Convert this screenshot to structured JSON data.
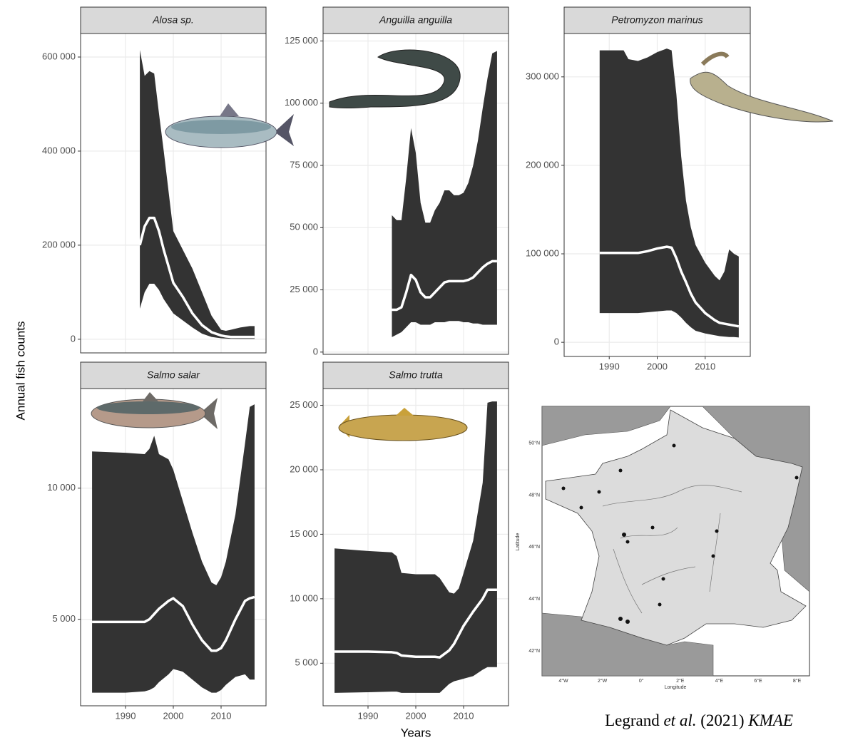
{
  "ylabel": "Annual fish counts",
  "xlabel": "Years",
  "caption": [
    "Legrand ",
    "et al.",
    " (2021) ",
    "KMAE"
  ],
  "map": {
    "lat_ticks": [
      "42°N",
      "44°N",
      "46°N",
      "48°N",
      "50°N"
    ],
    "lon_ticks": [
      "4°W",
      "2°W",
      "0°",
      "2°E",
      "4°E",
      "6°E",
      "8°E"
    ],
    "xlabel": "Longitude",
    "ylabel": "Latitude"
  },
  "chart_data": [
    {
      "type": "ribbon",
      "title": "Alosa sp.",
      "line_color": "#ffffff",
      "band_color": "#333333",
      "grid": true,
      "xtick_labels": false,
      "x": [
        1993,
        1994,
        1995,
        1996,
        1997,
        1998,
        2000,
        2002,
        2004,
        2006,
        2008,
        2010,
        2011,
        2012,
        2014,
        2016,
        2017
      ],
      "upper": [
        615000,
        560000,
        570000,
        565000,
        480000,
        400000,
        230000,
        190000,
        150000,
        100000,
        50000,
        20000,
        18000,
        20000,
        25000,
        28000,
        28000
      ],
      "values": [
        200000,
        240000,
        258000,
        258000,
        230000,
        190000,
        120000,
        90000,
        55000,
        30000,
        15000,
        8000,
        6000,
        5000,
        5000,
        5000,
        5000
      ],
      "lower": [
        65000,
        100000,
        118000,
        118000,
        105000,
        85000,
        55000,
        40000,
        25000,
        12000,
        5000,
        2000,
        1500,
        1200,
        1000,
        1000,
        1000
      ],
      "xlim": [
        1980.6,
        2019.4
      ],
      "xticks": [
        1990,
        2000,
        2010
      ],
      "ylim": [
        -29000,
        650000
      ],
      "yticks": [
        0,
        {
          "value": 200000,
          "label": "200 000"
        },
        {
          "value": 400000,
          "label": "400 000"
        },
        {
          "value": 600000,
          "label": "600 000"
        }
      ]
    },
    {
      "type": "ribbon",
      "title": "Anguilla anguilla",
      "line_color": "#ffffff",
      "band_color": "#333333",
      "grid": true,
      "xtick_labels": false,
      "x": [
        1995,
        1996,
        1997,
        1998,
        1999,
        2000,
        2001,
        2002,
        2003,
        2004,
        2005,
        2006,
        2007,
        2008,
        2009,
        2010,
        2011,
        2012,
        2013,
        2014,
        2015,
        2016,
        2017
      ],
      "upper": [
        55000,
        53000,
        53000,
        70000,
        90000,
        80000,
        60000,
        52000,
        52000,
        57000,
        60000,
        65000,
        65000,
        63000,
        63000,
        64000,
        68000,
        75000,
        85000,
        98000,
        110000,
        120000,
        121000
      ],
      "values": [
        17000,
        17000,
        18000,
        24000,
        31000,
        29000,
        24000,
        22000,
        22000,
        24000,
        26000,
        28000,
        28500,
        28500,
        28500,
        28500,
        29000,
        30000,
        32000,
        34000,
        35500,
        36500,
        36500
      ],
      "lower": [
        6000,
        7000,
        8000,
        10000,
        12000,
        12000,
        11000,
        11000,
        11000,
        12000,
        12000,
        12000,
        12500,
        12500,
        12500,
        12000,
        12000,
        11500,
        11500,
        11000,
        11000,
        11000,
        11000
      ],
      "xlim": [
        1980.6,
        2019.4
      ],
      "xticks": [
        1990,
        2000,
        2010
      ],
      "ylim": [
        -900,
        128000
      ],
      "yticks": [
        0,
        {
          "value": 25000,
          "label": "25 000"
        },
        {
          "value": 50000,
          "label": "50 000"
        },
        {
          "value": 75000,
          "label": "75 000"
        },
        {
          "value": 100000,
          "label": "100 000"
        },
        {
          "value": 125000,
          "label": "125 000"
        }
      ]
    },
    {
      "type": "ribbon",
      "title": "Petromyzon marinus",
      "line_color": "#ffffff",
      "band_color": "#333333",
      "grid": true,
      "xtick_labels": true,
      "x": [
        1988,
        1993,
        1994,
        1996,
        1998,
        2000,
        2002,
        2003,
        2004,
        2005,
        2006,
        2007,
        2008,
        2010,
        2012,
        2013,
        2014,
        2015,
        2016,
        2017
      ],
      "upper": [
        330000,
        330000,
        320000,
        318000,
        322000,
        328000,
        332000,
        330000,
        280000,
        210000,
        160000,
        130000,
        110000,
        90000,
        75000,
        70000,
        80000,
        105000,
        100000,
        97000
      ],
      "values": [
        101000,
        101000,
        101000,
        101000,
        103000,
        106000,
        108000,
        107000,
        95000,
        80000,
        68000,
        55000,
        45000,
        33000,
        25000,
        22000,
        21000,
        20000,
        19000,
        18000
      ],
      "lower": [
        33000,
        33000,
        33000,
        33000,
        34000,
        35000,
        36000,
        36000,
        33000,
        28000,
        22000,
        17000,
        13000,
        10000,
        8000,
        7000,
        6500,
        6000,
        6000,
        5500
      ],
      "xlim": [
        1980.6,
        2019.4
      ],
      "xticks": [
        1990,
        2000,
        2010
      ],
      "ylim": [
        -16000,
        349000
      ],
      "yticks": [
        0,
        {
          "value": 100000,
          "label": "100 000"
        },
        {
          "value": 200000,
          "label": "200 000"
        },
        {
          "value": 300000,
          "label": "300 000"
        }
      ]
    },
    {
      "type": "ribbon",
      "title": "Salmo salar",
      "line_color": "#ffffff",
      "band_color": "#333333",
      "grid": true,
      "xtick_labels": true,
      "x": [
        1983,
        1990,
        1994,
        1995,
        1996,
        1997,
        1999,
        2000,
        2002,
        2004,
        2006,
        2008,
        2009,
        2010,
        2011,
        2013,
        2015,
        2016,
        2017
      ],
      "upper": [
        11400,
        11350,
        11300,
        11500,
        12000,
        11300,
        11100,
        10700,
        9500,
        8300,
        7200,
        6400,
        6300,
        6600,
        7200,
        9000,
        11700,
        13100,
        13200
      ],
      "values": [
        4900,
        4900,
        4900,
        5000,
        5200,
        5400,
        5700,
        5800,
        5500,
        4800,
        4200,
        3800,
        3800,
        3900,
        4200,
        5000,
        5700,
        5800,
        5850
      ],
      "lower": [
        2200,
        2200,
        2250,
        2300,
        2400,
        2600,
        2900,
        3100,
        3000,
        2700,
        2400,
        2200,
        2200,
        2300,
        2500,
        2800,
        2900,
        2700,
        2700
      ],
      "xlim": [
        1980.6,
        2019.4
      ],
      "xticks": [
        1990,
        2000,
        2010
      ],
      "ylim": [
        1700,
        13800
      ],
      "yticks": [
        {
          "value": 5000,
          "label": "5 000"
        },
        {
          "value": 10000,
          "label": "10 000"
        }
      ]
    },
    {
      "type": "ribbon",
      "title": "Salmo trutta",
      "line_color": "#ffffff",
      "band_color": "#333333",
      "grid": true,
      "xtick_labels": true,
      "x": [
        1983,
        1990,
        1995,
        1996,
        1997,
        2000,
        2004,
        2005,
        2007,
        2008,
        2009,
        2010,
        2012,
        2014,
        2015,
        2016,
        2017
      ],
      "upper": [
        13900,
        13700,
        13600,
        13300,
        12000,
        11900,
        11900,
        11600,
        10500,
        10400,
        10800,
        12000,
        14500,
        19000,
        25200,
        25300,
        25300
      ],
      "values": [
        5900,
        5900,
        5850,
        5800,
        5600,
        5500,
        5500,
        5450,
        6000,
        6500,
        7200,
        7900,
        9000,
        10000,
        10700,
        10700,
        10700
      ],
      "lower": [
        2700,
        2750,
        2800,
        2800,
        2700,
        2700,
        2700,
        2700,
        3400,
        3600,
        3700,
        3800,
        4000,
        4500,
        4700,
        4700,
        4700
      ],
      "xlim": [
        1980.6,
        2019.4
      ],
      "xticks": [
        1990,
        2000,
        2010
      ],
      "ylim": [
        1700,
        26300
      ],
      "yticks": [
        {
          "value": 5000,
          "label": "5 000"
        },
        {
          "value": 10000,
          "label": "10 000"
        },
        {
          "value": 15000,
          "label": "15 000"
        },
        {
          "value": 20000,
          "label": "20 000"
        },
        {
          "value": 25000,
          "label": "25 000"
        }
      ]
    }
  ]
}
